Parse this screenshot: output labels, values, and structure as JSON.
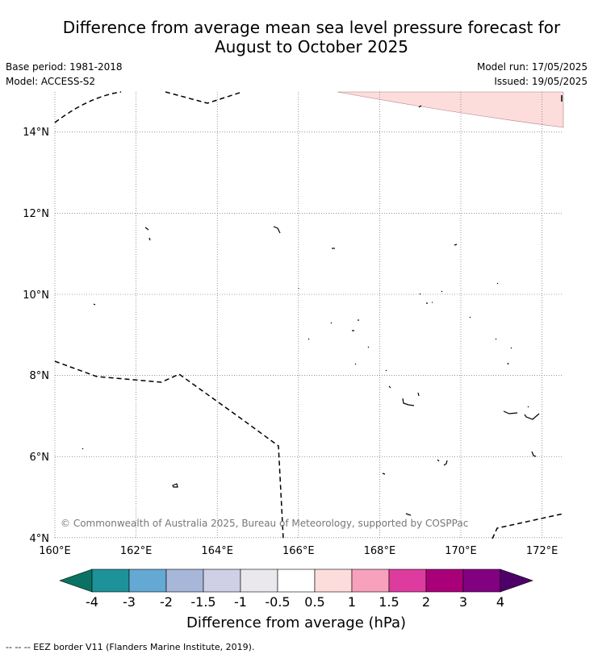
{
  "title_line1": "Difference from average mean sea level pressure forecast for",
  "title_line2": "August to October 2025",
  "meta": {
    "base_period": "Base period: 1981-2018",
    "model": "Model: ACCESS-S2",
    "model_run": "Model run: 17/05/2025",
    "issued": "Issued: 19/05/2025"
  },
  "map": {
    "lon_ticks": [
      "160°E",
      "162°E",
      "164°E",
      "166°E",
      "168°E",
      "170°E",
      "172°E"
    ],
    "lat_ticks": [
      "14°N",
      "12°N",
      "10°N",
      "8°N",
      "6°N",
      "4°N"
    ],
    "lon_range": [
      160,
      172.5
    ],
    "lat_range": [
      3.95,
      15
    ],
    "anomaly_region_color": "#fddcdc",
    "anomaly_region_category": "0.5 to 1 hPa",
    "copyright": "© Commonwealth of Australia 2025, Bureau of Meteorology, supported by COSPPac"
  },
  "legend": {
    "title": "Difference from average (hPa)",
    "tick_labels": [
      "-4",
      "-3",
      "-2",
      "-1.5",
      "-1",
      "-0.5",
      "0.5",
      "1",
      "1.5",
      "2",
      "3",
      "4"
    ],
    "colors": [
      "#0a7262",
      "#1d9298",
      "#64a8d4",
      "#a6b7da",
      "#cfcfe6",
      "#eae8ec",
      "#ffffff",
      "#fddcdc",
      "#f7a1bc",
      "#de3b9f",
      "#a90079",
      "#820180",
      "#4e0069"
    ]
  },
  "footnote": "--  --  -- EEZ border V11 (Flanders Marine Institute, 2019)."
}
